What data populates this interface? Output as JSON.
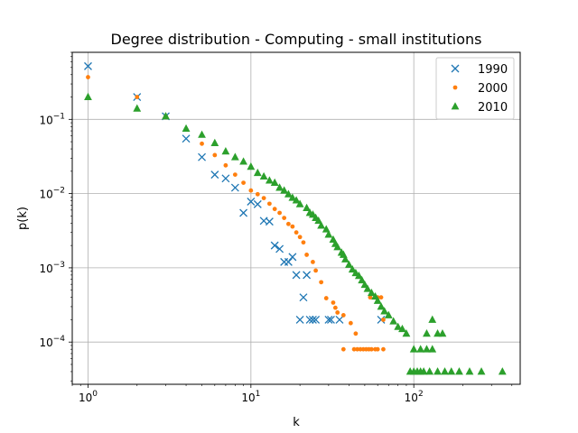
{
  "chart_data": {
    "type": "scatter",
    "title": "Degree distribution - Computing - small institutions",
    "xlabel": "k",
    "ylabel": "p(k)",
    "xscale": "log",
    "yscale": "log",
    "xlim": [
      0.8,
      450
    ],
    "ylim": [
      2.7e-05,
      0.8
    ],
    "grid": true,
    "legend_position": "top-right",
    "x_ticks": [
      {
        "value": 1,
        "base": "10",
        "exp": "0"
      },
      {
        "value": 10,
        "base": "10",
        "exp": "1"
      },
      {
        "value": 100,
        "base": "10",
        "exp": "2"
      }
    ],
    "y_ticks": [
      {
        "value": 0.0001,
        "base": "10",
        "exp": "−4"
      },
      {
        "value": 0.001,
        "base": "10",
        "exp": "−3"
      },
      {
        "value": 0.01,
        "base": "10",
        "exp": "−2"
      },
      {
        "value": 0.1,
        "base": "10",
        "exp": "−1"
      }
    ],
    "series": [
      {
        "name": "1990",
        "marker": "x",
        "color": "#1f77b4",
        "points": [
          [
            1,
            0.52
          ],
          [
            2,
            0.2
          ],
          [
            3,
            0.11
          ],
          [
            4,
            0.055
          ],
          [
            5,
            0.031
          ],
          [
            6,
            0.018
          ],
          [
            7,
            0.016
          ],
          [
            8,
            0.012
          ],
          [
            9,
            0.0055
          ],
          [
            10,
            0.0078
          ],
          [
            11,
            0.0072
          ],
          [
            12,
            0.0043
          ],
          [
            13,
            0.0042
          ],
          [
            14,
            0.002
          ],
          [
            15,
            0.0018
          ],
          [
            16,
            0.0012
          ],
          [
            17,
            0.0012
          ],
          [
            18,
            0.0014
          ],
          [
            19,
            0.0008
          ],
          [
            21,
            0.0004
          ],
          [
            22,
            0.0008
          ],
          [
            20,
            0.0002
          ],
          [
            23,
            0.0002
          ],
          [
            24,
            0.0002
          ],
          [
            25,
            0.0002
          ],
          [
            30,
            0.0002
          ],
          [
            31,
            0.0002
          ],
          [
            35,
            0.0002
          ],
          [
            63,
            0.0002
          ]
        ]
      },
      {
        "name": "2000",
        "marker": "o",
        "color": "#ff7f0e",
        "points": [
          [
            1,
            0.37
          ],
          [
            2,
            0.2
          ],
          [
            3,
            0.11
          ],
          [
            5,
            0.047
          ],
          [
            6,
            0.033
          ],
          [
            7,
            0.024
          ],
          [
            8,
            0.018
          ],
          [
            9,
            0.014
          ],
          [
            10,
            0.011
          ],
          [
            11,
            0.0098
          ],
          [
            12,
            0.0087
          ],
          [
            13,
            0.0073
          ],
          [
            14,
            0.0062
          ],
          [
            15,
            0.0055
          ],
          [
            16,
            0.0047
          ],
          [
            17,
            0.0039
          ],
          [
            18,
            0.0036
          ],
          [
            19,
            0.003
          ],
          [
            20,
            0.0026
          ],
          [
            21,
            0.0022
          ],
          [
            22,
            0.0015
          ],
          [
            24,
            0.0012
          ],
          [
            25,
            0.00092
          ],
          [
            27,
            0.00064
          ],
          [
            29,
            0.00039
          ],
          [
            32,
            0.00034
          ],
          [
            33,
            0.00029
          ],
          [
            34,
            0.00025
          ],
          [
            37,
            0.00023
          ],
          [
            41,
            0.00018
          ],
          [
            44,
            0.00013
          ],
          [
            37,
            8e-05
          ],
          [
            43,
            8e-05
          ],
          [
            45,
            8e-05
          ],
          [
            47,
            8e-05
          ],
          [
            49,
            8e-05
          ],
          [
            51,
            8e-05
          ],
          [
            53,
            8e-05
          ],
          [
            55,
            8e-05
          ],
          [
            58,
            8e-05
          ],
          [
            60,
            8e-05
          ],
          [
            65,
            8e-05
          ],
          [
            54,
            0.0004
          ],
          [
            60,
            0.0004
          ],
          [
            63,
            0.0004
          ],
          [
            65,
            0.0002
          ]
        ]
      },
      {
        "name": "2010",
        "marker": "^",
        "color": "#2ca02c",
        "points": [
          [
            1,
            0.2
          ],
          [
            2,
            0.14
          ],
          [
            3,
            0.11
          ],
          [
            4,
            0.075
          ],
          [
            5,
            0.062
          ],
          [
            6,
            0.048
          ],
          [
            7,
            0.037
          ],
          [
            8,
            0.031
          ],
          [
            9,
            0.027
          ],
          [
            10,
            0.023
          ],
          [
            11,
            0.019
          ],
          [
            12,
            0.017
          ],
          [
            13,
            0.015
          ],
          [
            14,
            0.014
          ],
          [
            15,
            0.012
          ],
          [
            16,
            0.011
          ],
          [
            17,
            0.0098
          ],
          [
            18,
            0.0088
          ],
          [
            19,
            0.0081
          ],
          [
            20,
            0.0072
          ],
          [
            22,
            0.0064
          ],
          [
            23,
            0.0055
          ],
          [
            24,
            0.0052
          ],
          [
            25,
            0.0047
          ],
          [
            26,
            0.0043
          ],
          [
            27,
            0.0037
          ],
          [
            29,
            0.0033
          ],
          [
            30,
            0.0028
          ],
          [
            32,
            0.0024
          ],
          [
            33,
            0.0021
          ],
          [
            34,
            0.0019
          ],
          [
            36,
            0.0016
          ],
          [
            37,
            0.0015
          ],
          [
            38,
            0.0013
          ],
          [
            40,
            0.0011
          ],
          [
            42,
            0.00095
          ],
          [
            44,
            0.00085
          ],
          [
            46,
            0.00078
          ],
          [
            48,
            0.00068
          ],
          [
            50,
            0.00059
          ],
          [
            52,
            0.00052
          ],
          [
            55,
            0.00046
          ],
          [
            58,
            0.00041
          ],
          [
            60,
            0.00036
          ],
          [
            63,
            0.0003
          ],
          [
            66,
            0.00026
          ],
          [
            70,
            0.00023
          ],
          [
            75,
            0.00019
          ],
          [
            80,
            0.00016
          ],
          [
            85,
            0.00015
          ],
          [
            90,
            0.00013
          ],
          [
            100,
            8e-05
          ],
          [
            110,
            8e-05
          ],
          [
            120,
            8e-05
          ],
          [
            130,
            8e-05
          ],
          [
            95,
            4e-05
          ],
          [
            100,
            4e-05
          ],
          [
            105,
            4e-05
          ],
          [
            110,
            4e-05
          ],
          [
            115,
            4e-05
          ],
          [
            125,
            4e-05
          ],
          [
            140,
            4e-05
          ],
          [
            155,
            4e-05
          ],
          [
            170,
            4e-05
          ],
          [
            190,
            4e-05
          ],
          [
            220,
            4e-05
          ],
          [
            260,
            4e-05
          ],
          [
            350,
            4e-05
          ],
          [
            120,
            0.00013
          ],
          [
            140,
            0.00013
          ],
          [
            130,
            0.0002
          ],
          [
            150,
            0.00013
          ]
        ]
      }
    ]
  }
}
